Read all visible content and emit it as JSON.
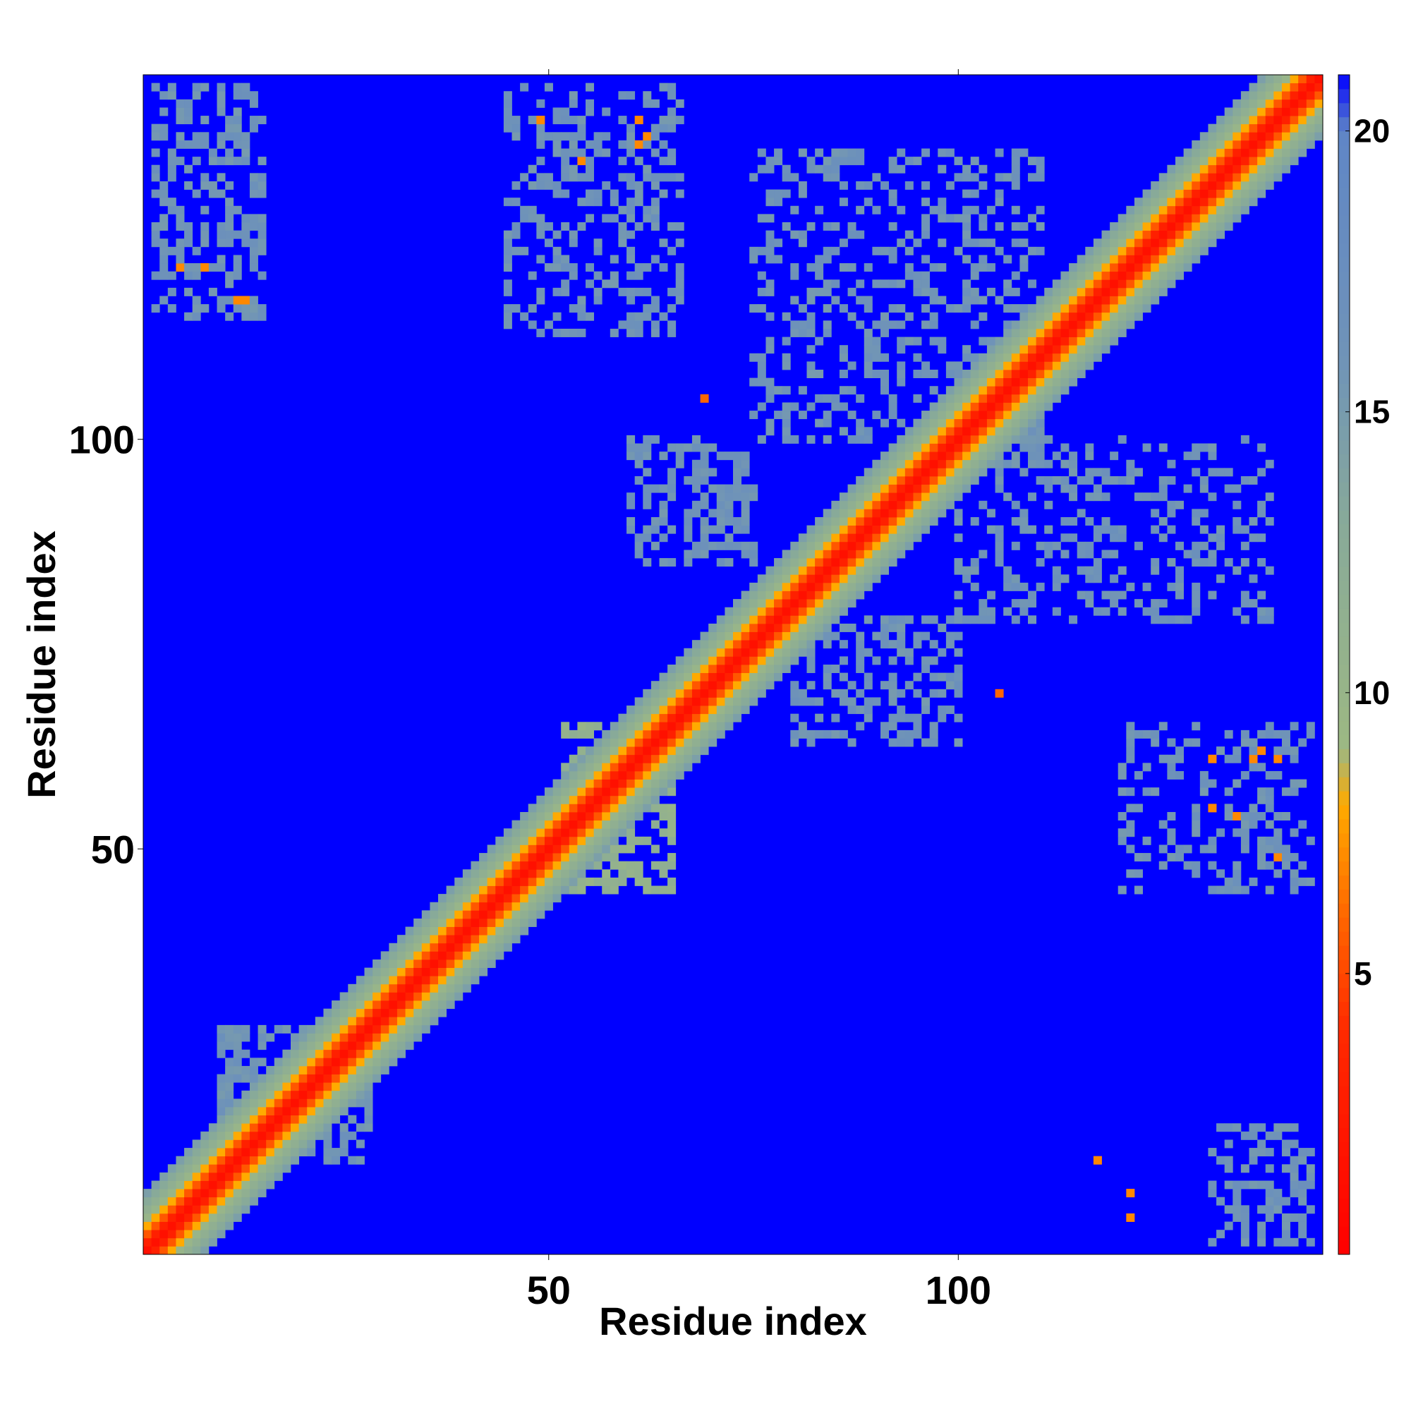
{
  "chart_data": {
    "type": "heatmap",
    "title": "",
    "xlabel": "Residue index",
    "ylabel": "Residue index",
    "n_residues": 144,
    "xlim": [
      1,
      144
    ],
    "ylim": [
      1,
      144
    ],
    "x_ticks": [
      {
        "value": 50,
        "label": "50"
      },
      {
        "value": 100,
        "label": "100"
      }
    ],
    "y_ticks": [
      {
        "value": 50,
        "label": "50"
      },
      {
        "value": 100,
        "label": "100"
      }
    ],
    "colorbar": {
      "range": [
        0,
        21
      ],
      "ticks": [
        {
          "value": 5,
          "label": "5"
        },
        {
          "value": 10,
          "label": "10"
        },
        {
          "value": 15,
          "label": "15"
        },
        {
          "value": 20,
          "label": "20"
        }
      ],
      "stops": [
        {
          "value": 0,
          "color": "#ff0000"
        },
        {
          "value": 4,
          "color": "#ff2a00"
        },
        {
          "value": 6,
          "color": "#ff6600"
        },
        {
          "value": 8,
          "color": "#ffaa00"
        },
        {
          "value": 9,
          "color": "#9db883"
        },
        {
          "value": 13,
          "color": "#88aa99"
        },
        {
          "value": 16,
          "color": "#6f93b8"
        },
        {
          "value": 20,
          "color": "#5f86c6"
        },
        {
          "value": 21,
          "color": "#0000ff"
        }
      ]
    },
    "background_value": 21,
    "diagonal_band_profile": [
      {
        "offset": 0,
        "value": 1.5
      },
      {
        "offset": 1,
        "value": 3
      },
      {
        "offset": 2,
        "value": 5.5
      },
      {
        "offset": 3,
        "value": 8
      },
      {
        "offset": 4,
        "value": 10
      },
      {
        "offset": 5,
        "value": 11.5
      },
      {
        "offset": 6,
        "value": 13
      },
      {
        "offset": 7,
        "value": 14.5
      }
    ],
    "contact_clusters": [
      {
        "x_range": [
          2,
          15
        ],
        "y_range": [
          115,
          143
        ],
        "value": 16,
        "density": 0.45
      },
      {
        "x_range": [
          131,
          143
        ],
        "y_range": [
          2,
          16
        ],
        "value": 16,
        "density": 0.45
      },
      {
        "x_range": [
          45,
          66
        ],
        "y_range": [
          113,
          143
        ],
        "value": 16,
        "density": 0.35
      },
      {
        "x_range": [
          75,
          110
        ],
        "y_range": [
          100,
          135
        ],
        "value": 16,
        "density": 0.35
      },
      {
        "x_range": [
          60,
          75
        ],
        "y_range": [
          85,
          100
        ],
        "value": 16,
        "density": 0.45
      },
      {
        "x_range": [
          100,
          138
        ],
        "y_range": [
          78,
          100
        ],
        "value": 16,
        "density": 0.3
      },
      {
        "x_range": [
          80,
          100
        ],
        "y_range": [
          63,
          78
        ],
        "value": 16,
        "density": 0.4
      },
      {
        "x_range": [
          120,
          143
        ],
        "y_range": [
          45,
          65
        ],
        "value": 16,
        "density": 0.3
      },
      {
        "x_range": [
          52,
          65
        ],
        "y_range": [
          45,
          65
        ],
        "value": 11,
        "density": 0.55
      },
      {
        "x_range": [
          10,
          28
        ],
        "y_range": [
          12,
          28
        ],
        "value": 16,
        "density": 0.5
      }
    ],
    "close_contacts": [
      {
        "x": 5,
        "y": 121,
        "value": 7
      },
      {
        "x": 8,
        "y": 121,
        "value": 7
      },
      {
        "x": 12,
        "y": 117,
        "value": 7
      },
      {
        "x": 13,
        "y": 117,
        "value": 7
      },
      {
        "x": 49,
        "y": 139,
        "value": 7
      },
      {
        "x": 61,
        "y": 139,
        "value": 7
      },
      {
        "x": 61,
        "y": 136,
        "value": 7
      },
      {
        "x": 62,
        "y": 137,
        "value": 7
      },
      {
        "x": 54,
        "y": 134,
        "value": 7
      },
      {
        "x": 69,
        "y": 105,
        "value": 6
      },
      {
        "x": 105,
        "y": 69,
        "value": 6
      },
      {
        "x": 121,
        "y": 8,
        "value": 7
      },
      {
        "x": 117,
        "y": 12,
        "value": 7
      },
      {
        "x": 121,
        "y": 5,
        "value": 7
      },
      {
        "x": 136,
        "y": 61,
        "value": 7
      },
      {
        "x": 139,
        "y": 61,
        "value": 7
      },
      {
        "x": 137,
        "y": 62,
        "value": 7
      },
      {
        "x": 139,
        "y": 49,
        "value": 7
      },
      {
        "x": 134,
        "y": 54,
        "value": 7
      },
      {
        "x": 131,
        "y": 61,
        "value": 7
      },
      {
        "x": 131,
        "y": 55,
        "value": 7
      }
    ],
    "grid": false,
    "legend": "colorbar-right"
  }
}
